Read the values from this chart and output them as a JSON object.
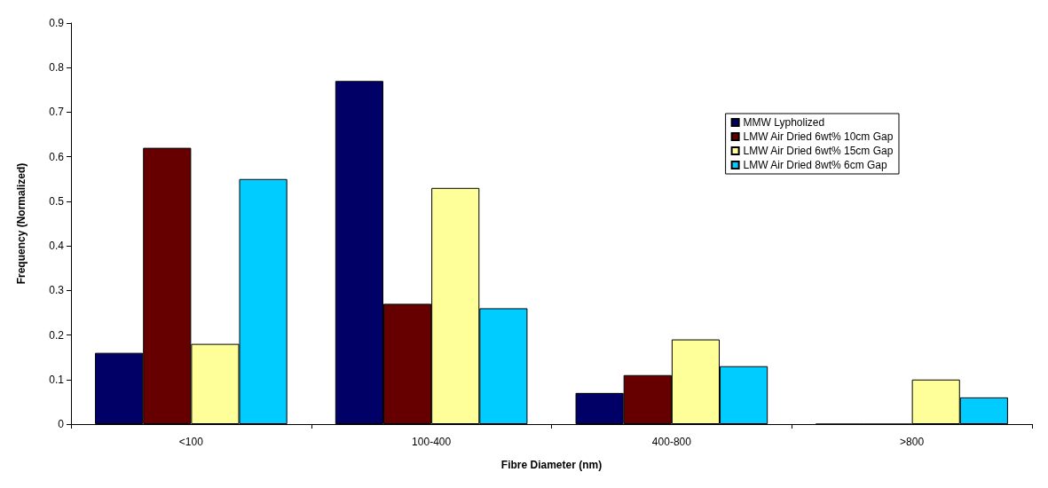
{
  "chart_data": {
    "type": "bar",
    "xlabel": "Fibre Diameter (nm)",
    "ylabel": "Frequency (Normalized)",
    "categories": [
      "<100",
      "100-400",
      "400-800",
      ">800"
    ],
    "series": [
      {
        "name": "MMW Lypholized",
        "color": "#000066",
        "values": [
          0.16,
          0.77,
          0.07,
          0
        ]
      },
      {
        "name": "LMW Air Dried 6wt% 10cm Gap",
        "color": "#660000",
        "values": [
          0.62,
          0.27,
          0.11,
          0
        ]
      },
      {
        "name": "LMW Air Dried 6wt% 15cm Gap",
        "color": "#ffff99",
        "values": [
          0.18,
          0.53,
          0.19,
          0.1
        ]
      },
      {
        "name": "LMW Air Dried 8wt% 6cm Gap",
        "color": "#00ccff",
        "values": [
          0.55,
          0.26,
          0.13,
          0.06
        ]
      }
    ],
    "ylim": [
      0,
      0.9
    ],
    "yticks": [
      0,
      0.1,
      0.2,
      0.3,
      0.4,
      0.5,
      0.6,
      0.7,
      0.8,
      0.9
    ],
    "grid": false,
    "legend": "right"
  }
}
